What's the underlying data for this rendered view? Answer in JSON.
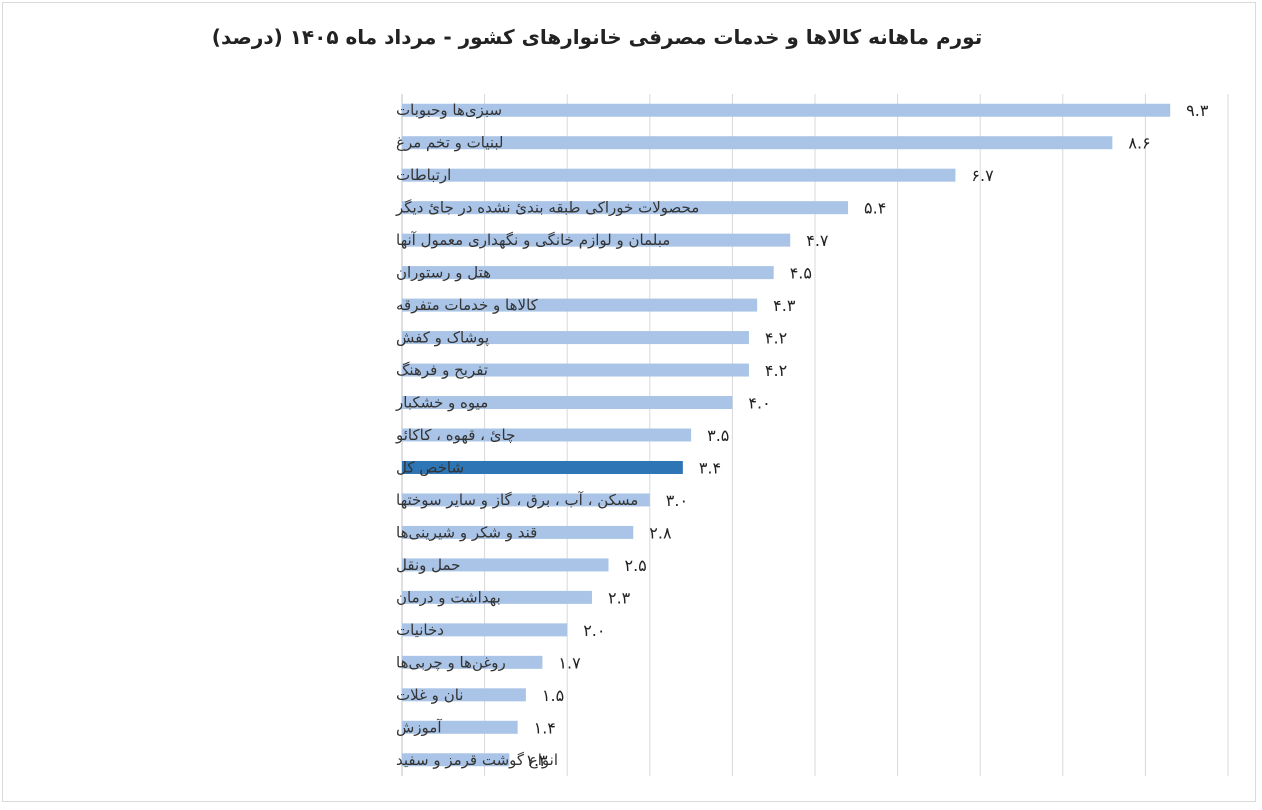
{
  "chart_data": {
    "type": "bar",
    "orientation": "horizontal",
    "title": "تورم ماهانه کالاها و خدمات مصرفی خانوارهای کشور - مرداد ماه ۱۴۰۵ (درصد)",
    "xlabel": "",
    "ylabel": "",
    "xlim": [
      0,
      10
    ],
    "grid": true,
    "legend": "none",
    "colors": {
      "bar": "#a9c4e6",
      "highlight": "#2e75b6",
      "grid": "#d9d9d9",
      "axis": "#bfbfbf"
    },
    "highlight_category": "شاخص کل",
    "categories": [
      "سبزی‌ها وحبوبات",
      "لبنیات و تخم مرغ",
      "ارتباطات",
      "محصولات خوراکی طبقه بندیٔ نشده در جایٔ دیگر",
      "مبلمان و لوازم خانگی و نگهداری معمول آنها",
      "هتل و رستوران",
      "کالاها و خدمات متفرقه",
      "پوشاک و کفش",
      "تفریح و فرهنگ",
      "میوه و خشکبار",
      "چایٔ ، قهوه ، کاکائو",
      "شاخص کل",
      "مسکن ، آب ، برق ، گاز و سایر سوختها",
      "قند و شکر و شیرینی‌ها",
      "حمل ونقل",
      "بهداشت و درمان",
      "دخانیات",
      "روغن‌ها و چربی‌ها",
      "نان و غلات",
      "آموزش",
      "انواع گوشت قرمز و سفید"
    ],
    "values": [
      9.3,
      8.6,
      6.7,
      5.4,
      4.7,
      4.5,
      4.3,
      4.2,
      4.2,
      4.0,
      3.5,
      3.4,
      3.0,
      2.8,
      2.5,
      2.3,
      2.0,
      1.7,
      1.5,
      1.4,
      1.3
    ],
    "value_labels": [
      "۹.۳",
      "۸.۶",
      "۶.۷",
      "۵.۴",
      "۴.۷",
      "۴.۵",
      "۴.۳",
      "۴.۲",
      "۴.۲",
      "۴.۰",
      "۳.۵",
      "۳.۴",
      "۳.۰",
      "۲.۸",
      "۲.۵",
      "۲.۳",
      "۲.۰",
      "۱.۷",
      "۱.۵",
      "۱.۴",
      "۱.۳"
    ]
  }
}
